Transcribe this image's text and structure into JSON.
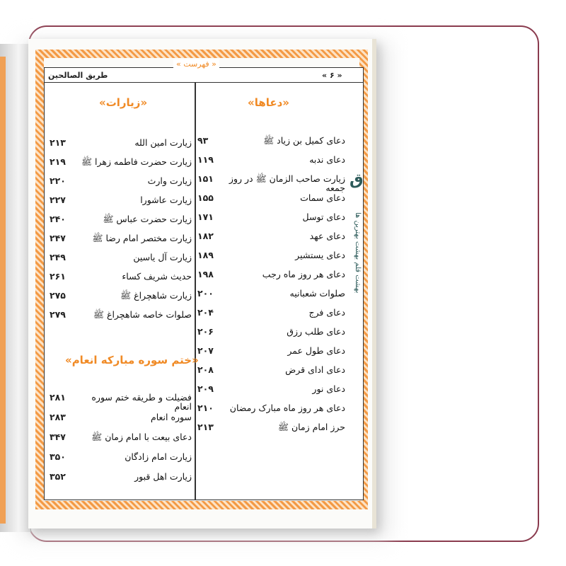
{
  "header": {
    "book_title": "طریق الصالحین",
    "section": "« فهرست »",
    "page_number": "« ۶ »"
  },
  "watermark": {
    "text": "بهشت قلم بهشت بهترین ها",
    "logo_text": "بهشت قلم"
  },
  "right_column": {
    "title": "«دعاها»",
    "items": [
      {
        "title": "دعای کمیل بن زیاد ﷺ",
        "page": "۹۳"
      },
      {
        "title": "دعای ندبه",
        "page": "۱۱۹"
      },
      {
        "title": "زیارت صاحب الزمان ﷺ در روز جمعه",
        "page": "۱۵۱"
      },
      {
        "title": "دعای سمات",
        "page": "۱۵۵"
      },
      {
        "title": "دعای توسل",
        "page": "۱۷۱"
      },
      {
        "title": "دعای عهد",
        "page": "۱۸۲"
      },
      {
        "title": "دعای یستشیر",
        "page": "۱۸۹"
      },
      {
        "title": "دعای هر روز ماه رجب",
        "page": "۱۹۸"
      },
      {
        "title": "صلوات شعبانیه",
        "page": "۲۰۰"
      },
      {
        "title": "دعای فرج",
        "page": "۲۰۴"
      },
      {
        "title": "دعای طلب رزق",
        "page": "۲۰۶"
      },
      {
        "title": "دعای طول عمر",
        "page": "۲۰۷"
      },
      {
        "title": "دعای ادای قرض",
        "page": "۲۰۸"
      },
      {
        "title": "دعای نور",
        "page": "۲۰۹"
      },
      {
        "title": "دعای هر روز ماه مبارک رمضان",
        "page": "۲۱۰"
      },
      {
        "title": "حرز امام زمان ﷺ",
        "page": "۲۱۳"
      }
    ]
  },
  "left_column": {
    "title": "«زیارات»",
    "items": [
      {
        "title": "زیارت امین الله",
        "page": "۲۱۳"
      },
      {
        "title": "زیارت حضرت فاطمه زهرا ﷺ",
        "page": "۲۱۹"
      },
      {
        "title": "زیارت وارث",
        "page": "۲۲۰"
      },
      {
        "title": "زیارت عاشورا",
        "page": "۲۲۷"
      },
      {
        "title": "زیارت حضرت عباس ﷺ",
        "page": "۲۴۰"
      },
      {
        "title": "زیارت مختصر امام رضا ﷺ",
        "page": "۲۴۷"
      },
      {
        "title": "زیارت آل یاسین",
        "page": "۲۴۹"
      },
      {
        "title": "حدیث شریف کساء",
        "page": "۲۶۱"
      },
      {
        "title": "زیارت شاهچراغ ﷺ",
        "page": "۲۷۵"
      },
      {
        "title": "صلوات خاصه شاهچراغ ﷺ",
        "page": "۲۷۹"
      }
    ],
    "title2": "«ختم سوره مبارکه انعام»",
    "items2": [
      {
        "title": "فضیلت و طریقه ختم سوره انعام",
        "page": "۲۸۱"
      },
      {
        "title": "سوره انعام",
        "page": "۲۸۳"
      },
      {
        "title": "دعای بیعت با امام زمان ﷺ",
        "page": "۳۴۷"
      },
      {
        "title": "زیارت امام زادگان",
        "page": "۳۵۰"
      },
      {
        "title": "زیارت اهل قبور",
        "page": "۳۵۲"
      }
    ]
  }
}
